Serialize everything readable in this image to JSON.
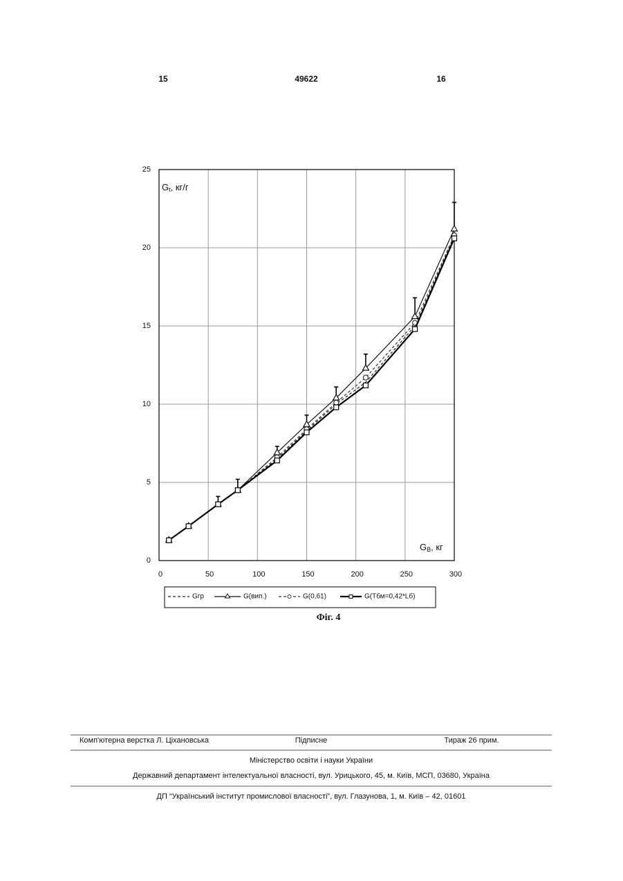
{
  "header": {
    "left_page": "15",
    "patent_number": "49622",
    "right_page": "16"
  },
  "chart_data": {
    "type": "line",
    "x_label": {
      "symbol": "G",
      "subscript": "B",
      "unit": ", кг"
    },
    "y_label": {
      "symbol": "G",
      "subscript": "t",
      "unit": ", кг/г"
    },
    "x": [
      10,
      30,
      60,
      80,
      120,
      150,
      180,
      210,
      260,
      300
    ],
    "series": [
      {
        "name": "Gгр",
        "color": "#222222",
        "dash": true,
        "marker": "none",
        "values": [
          1.3,
          2.2,
          3.6,
          4.5,
          6.5,
          8.3,
          10.0,
          11.4,
          15.0,
          20.7
        ]
      },
      {
        "name": "G(вип.)",
        "color": "#111111",
        "dash": false,
        "marker": "triangle",
        "values": [
          1.3,
          2.2,
          3.6,
          4.5,
          6.9,
          8.7,
          10.4,
          12.3,
          15.6,
          21.2
        ],
        "errors": [
          null,
          null,
          0.5,
          0.7,
          0.4,
          0.6,
          0.7,
          0.9,
          1.2,
          1.7
        ]
      },
      {
        "name": "G(0,61)",
        "color": "#333333",
        "dash": true,
        "marker": "circle",
        "values": [
          1.3,
          2.2,
          3.6,
          4.5,
          6.6,
          8.4,
          10.1,
          11.7,
          15.2,
          20.8
        ]
      },
      {
        "name": "G(Тбм=0,42*Lб)",
        "color": "#000000",
        "dash": false,
        "marker": "square",
        "values": [
          1.3,
          2.2,
          3.6,
          4.5,
          6.4,
          8.2,
          9.8,
          11.2,
          14.8,
          20.6
        ]
      }
    ],
    "xlim": [
      0,
      300
    ],
    "xticks": [
      0,
      50,
      100,
      150,
      200,
      250,
      300
    ],
    "ylim": [
      0,
      25
    ],
    "yticks": [
      0,
      5,
      10,
      15,
      20,
      25
    ],
    "grid": true,
    "legend": "bottom"
  },
  "caption": "Фіг. 4",
  "footer": {
    "typesetter": "Комп'ютерна верстка Л. Ціхановська",
    "signed": "Підписне",
    "circulation": "Тираж 26 прим.",
    "ministry": "Міністерство освіти і науки України",
    "department": "Державний департамент інтелектуальної власності, вул. Урицького, 45, м. Київ, МСП, 03680, Україна",
    "institute": "ДП “Український інститут промислової власності”, вул. Глазунова, 1, м. Київ – 42, 01601"
  }
}
